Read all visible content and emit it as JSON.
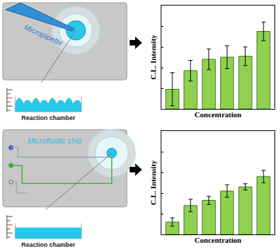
{
  "diagrams": [
    {
      "label": "Micropipette",
      "chamber": "Reaction chamber"
    },
    {
      "label": "Microfluidic chip",
      "chamber": "Reaction chamber"
    }
  ],
  "chart_data": [
    {
      "type": "bar",
      "categories": [
        null,
        null,
        null,
        null,
        null,
        null
      ],
      "values": [
        19,
        37,
        48,
        50,
        51,
        75
      ],
      "error": [
        16,
        10,
        10,
        11,
        9,
        9
      ],
      "color": "#8fd14f",
      "ylim": [
        0,
        100
      ],
      "yticks": [
        0,
        20,
        40,
        60,
        80,
        100
      ],
      "tick_labels": false,
      "xlabel": "Concentration",
      "ylabel": "C.L. Intensity"
    },
    {
      "type": "bar",
      "categories": [
        null,
        null,
        null,
        null,
        null,
        null
      ],
      "values": [
        12,
        28,
        33,
        42,
        46,
        56
      ],
      "error": [
        4,
        6,
        4,
        6,
        3,
        6
      ],
      "color": "#8fd14f",
      "ylim": [
        0,
        100
      ],
      "yticks": [
        0,
        20,
        40,
        60,
        80,
        100
      ],
      "tick_labels": false,
      "xlabel": "Concentration",
      "ylabel": "C.L. Intensity"
    }
  ]
}
